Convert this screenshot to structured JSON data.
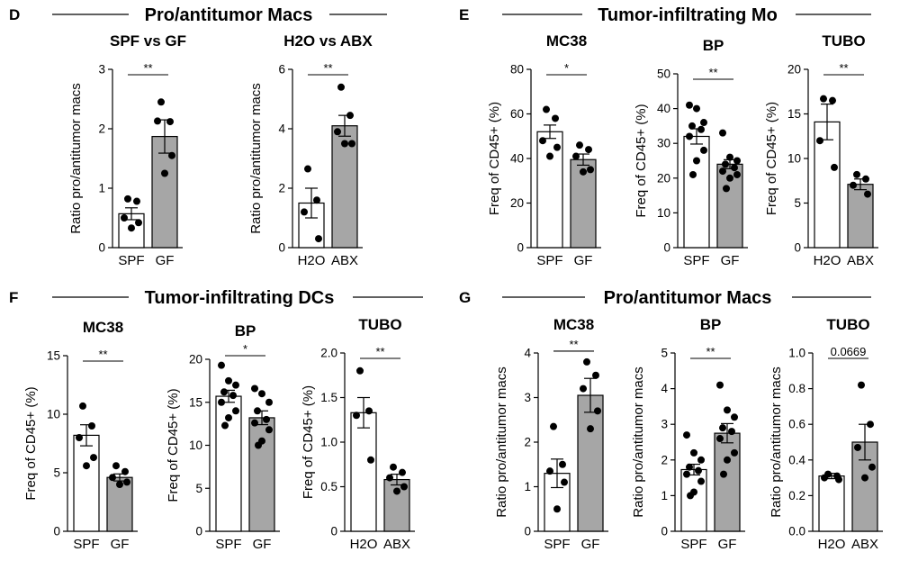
{
  "sections": [
    {
      "letter": "D",
      "title": "Pro/antitumor Macs"
    },
    {
      "letter": "E",
      "title": "Tumor-infiltrating Mo"
    },
    {
      "letter": "F",
      "title": "Tumor-infiltrating DCs"
    },
    {
      "letter": "G",
      "title": "Pro/antitumor Macs"
    }
  ],
  "colors": {
    "bar_control": "#ffffff",
    "bar_treated": "#a6a6a6",
    "stroke": "#000000",
    "dot": "#000000"
  },
  "chart_data": [
    {
      "type": "bar",
      "title": "SPF vs GF",
      "ylabel": "Ratio pro/antitumor macs",
      "categories": [
        "SPF",
        "GF"
      ],
      "ylim": [
        0,
        3
      ],
      "yticks": [
        "0",
        "1",
        "2",
        "3"
      ],
      "means": [
        0.57,
        1.87
      ],
      "sem": [
        0.1,
        0.28
      ],
      "points": [
        [
          0.82,
          0.78,
          0.5,
          0.42,
          0.33
        ],
        [
          2.45,
          2.12,
          2.13,
          1.55,
          1.25
        ]
      ],
      "significance": "**"
    },
    {
      "type": "bar",
      "title": "H2O vs ABX",
      "ylabel": "Ratio pro/antitumor macs",
      "categories": [
        "H2O",
        "ABX"
      ],
      "ylim": [
        0,
        6
      ],
      "yticks": [
        "0",
        "2",
        "4",
        "6"
      ],
      "means": [
        1.5,
        4.1
      ],
      "sem": [
        0.5,
        0.35
      ],
      "points": [
        [
          2.65,
          1.6,
          1.2,
          0.3
        ],
        [
          5.4,
          4.45,
          3.9,
          3.5,
          3.5
        ]
      ],
      "significance": "**"
    },
    {
      "type": "bar",
      "title": "MC38",
      "ylabel": "Freq of CD45+ (%)",
      "categories": [
        "SPF",
        "GF"
      ],
      "ylim": [
        0,
        80
      ],
      "yticks": [
        "0",
        "20",
        "40",
        "60",
        "80"
      ],
      "means": [
        52,
        39.5
      ],
      "sem": [
        3,
        2.5
      ],
      "points": [
        [
          62,
          58,
          48,
          45,
          41
        ],
        [
          46,
          44,
          41,
          35,
          34
        ]
      ],
      "significance": "*"
    },
    {
      "type": "bar",
      "title": "BP",
      "ylabel": "Freq of CD45+ (%)",
      "categories": [
        "SPF",
        "GF"
      ],
      "ylim": [
        0,
        50
      ],
      "yticks": [
        "0",
        "10",
        "20",
        "30",
        "40",
        "50"
      ],
      "means": [
        32,
        24
      ],
      "sem": [
        2.2,
        1.3
      ],
      "points": [
        [
          41,
          40,
          36,
          35,
          34,
          32,
          28,
          25,
          21
        ],
        [
          33,
          26,
          25,
          24,
          23,
          22,
          21,
          20,
          17
        ]
      ],
      "significance": "**"
    },
    {
      "type": "bar",
      "title": "TUBO",
      "ylabel": "Freq of CD45+ (%)",
      "categories": [
        "H2O",
        "ABX"
      ],
      "ylim": [
        0,
        20
      ],
      "yticks": [
        "0",
        "5",
        "10",
        "15",
        "20"
      ],
      "means": [
        14.1,
        7.1
      ],
      "sem": [
        2.0,
        0.6
      ],
      "points": [
        [
          16.7,
          16.5,
          12,
          9
        ],
        [
          8.2,
          7.7,
          7,
          6
        ]
      ],
      "significance": "**"
    },
    {
      "type": "bar",
      "title": "MC38",
      "ylabel": "Freq of CD45+ (%)",
      "categories": [
        "SPF",
        "GF"
      ],
      "ylim": [
        0,
        15
      ],
      "yticks": [
        "0",
        "5",
        "10",
        "15"
      ],
      "means": [
        8.2,
        4.6
      ],
      "sem": [
        0.9,
        0.3
      ],
      "points": [
        [
          10.7,
          9,
          8,
          6.3,
          5.6
        ],
        [
          5.6,
          5.1,
          4.6,
          4.2,
          4
        ]
      ],
      "significance": "**"
    },
    {
      "type": "bar",
      "title": "BP",
      "ylabel": "Freq of CD45+ (%)",
      "categories": [
        "SPF",
        "GF"
      ],
      "ylim": [
        0,
        20
      ],
      "yticks": [
        "0",
        "5",
        "10",
        "15",
        "20"
      ],
      "means": [
        15.7,
        13.2
      ],
      "sem": [
        0.7,
        0.8
      ],
      "points": [
        [
          19.3,
          17.5,
          17,
          16.2,
          15.8,
          15,
          14,
          13.2,
          12.3
        ],
        [
          16.6,
          16,
          15,
          14,
          13,
          12.6,
          11.8,
          10.5,
          10
        ]
      ],
      "significance": "*"
    },
    {
      "type": "bar",
      "title": "TUBO",
      "ylabel": "Freq of CD45+ (%)",
      "categories": [
        "H2O",
        "ABX"
      ],
      "ylim": [
        0,
        2.0
      ],
      "yticks": [
        "0",
        "0.5",
        "1.0",
        "1.5",
        "2.0"
      ],
      "means": [
        1.33,
        0.58
      ],
      "sem": [
        0.17,
        0.06
      ],
      "points": [
        [
          1.8,
          1.35,
          1.3,
          0.8
        ],
        [
          0.72,
          0.66,
          0.6,
          0.5,
          0.45
        ]
      ],
      "significance": "**"
    },
    {
      "type": "bar",
      "title": "MC38",
      "ylabel": "Ratio pro/antitumor macs",
      "categories": [
        "SPF",
        "GF"
      ],
      "ylim": [
        0,
        4
      ],
      "yticks": [
        "0",
        "1",
        "2",
        "3",
        "4"
      ],
      "means": [
        1.3,
        3.05
      ],
      "sem": [
        0.32,
        0.38
      ],
      "points": [
        [
          2.35,
          1.5,
          1.35,
          1.1,
          0.5
        ],
        [
          3.8,
          3.5,
          3.2,
          2.7,
          2.3
        ]
      ],
      "significance": "**"
    },
    {
      "type": "bar",
      "title": "BP",
      "ylabel": "Ratio pro/antitumor macs",
      "categories": [
        "SPF",
        "GF"
      ],
      "ylim": [
        0,
        5
      ],
      "yticks": [
        "0",
        "1",
        "2",
        "3",
        "4",
        "5"
      ],
      "means": [
        1.73,
        2.75
      ],
      "sem": [
        0.15,
        0.27
      ],
      "points": [
        [
          2.7,
          2.2,
          2.0,
          1.8,
          1.7,
          1.6,
          1.4,
          1.1,
          1.0
        ],
        [
          4.1,
          3.4,
          3.2,
          2.9,
          2.8,
          2.6,
          2.2,
          2.0,
          1.6
        ]
      ],
      "significance": "**"
    },
    {
      "type": "bar",
      "title": "TUBO",
      "ylabel": "Ratio pro/antitumor macs",
      "categories": [
        "H2O",
        "ABX"
      ],
      "ylim": [
        0,
        1.0
      ],
      "yticks": [
        "0.0",
        "0.2",
        "0.4",
        "0.6",
        "0.8",
        "1.0"
      ],
      "means": [
        0.31,
        0.5
      ],
      "sem": [
        0.015,
        0.1
      ],
      "points": [
        [
          0.32,
          0.31,
          0.3,
          0.29
        ],
        [
          0.82,
          0.6,
          0.47,
          0.36,
          0.3
        ]
      ],
      "significance": "0.0669"
    }
  ]
}
